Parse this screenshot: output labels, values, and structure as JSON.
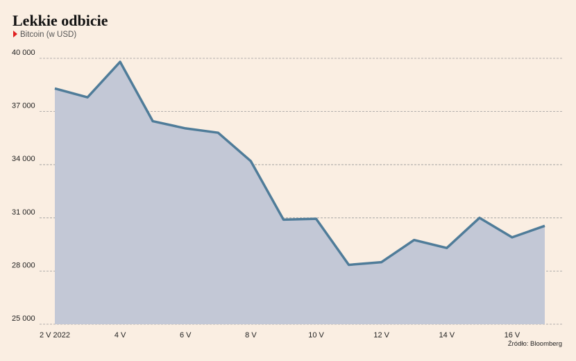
{
  "chart_data": {
    "type": "area",
    "title": "Lekkie odbicie",
    "subtitle": "Bitcoin (w USD)",
    "source": "Źródło: Bloomberg",
    "categories": [
      "2 V 2022",
      null,
      "4 V",
      null,
      "6 V",
      null,
      "8 V",
      null,
      "10 V",
      null,
      "12 V",
      null,
      "14 V",
      null,
      "16 V",
      null
    ],
    "values": [
      38300,
      37800,
      39800,
      36450,
      36050,
      35800,
      34200,
      30900,
      30950,
      28350,
      28500,
      29750,
      29300,
      31000,
      29900,
      30550
    ],
    "line_color": "#4f7c99",
    "area_color": "#c3c8d6",
    "ylim": [
      25000,
      40000
    ],
    "yticks": [
      {
        "value": 25000,
        "label": "25 000"
      },
      {
        "value": 28000,
        "label": "28 000"
      },
      {
        "value": 31000,
        "label": "31 000"
      },
      {
        "value": 34000,
        "label": "34 000"
      },
      {
        "value": 37000,
        "label": "37 000"
      },
      {
        "value": 40000,
        "label": "40 000"
      }
    ],
    "grid": true
  }
}
